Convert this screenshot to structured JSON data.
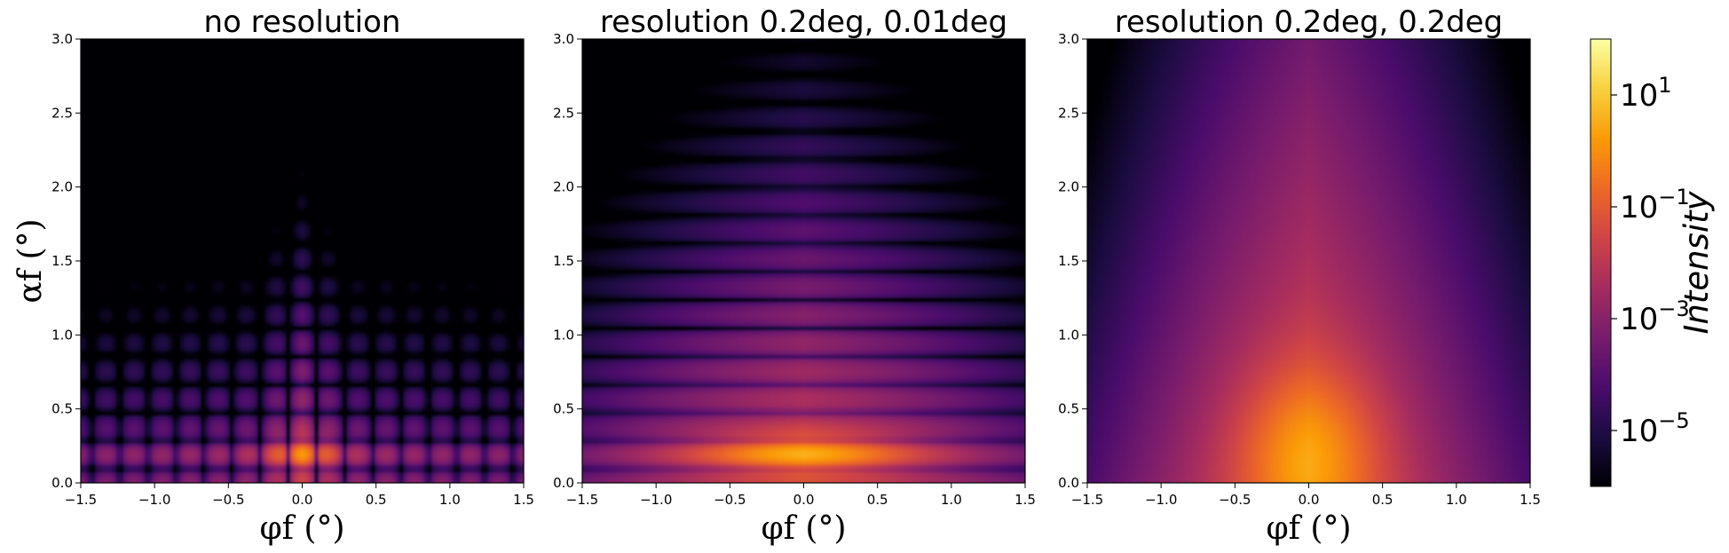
{
  "chart_data": [
    {
      "type": "heatmap",
      "title": "no resolution",
      "xlabel": "φf (°)",
      "ylabel": "αf (°)",
      "xlim": [
        -1.5,
        1.5
      ],
      "ylim": [
        0.0,
        3.0
      ],
      "xticks": [
        "−1.5",
        "−1.0",
        "−0.5",
        "0.0",
        "0.5",
        "1.0",
        "1.5"
      ],
      "yticks": [
        "0.0",
        "0.5",
        "1.0",
        "1.5",
        "2.0",
        "2.5",
        "3.0"
      ],
      "grid": false,
      "pattern": "lattice of intensity maxima (peak spacing ~0.19 deg in both directions); brightest central column at φf = 0; maximum intensity ~10^1 near αf ≈ 0.2"
    },
    {
      "type": "heatmap",
      "title": "resolution 0.2deg, 0.01deg",
      "xlabel": "φf (°)",
      "ylabel": "",
      "xlim": [
        -1.5,
        1.5
      ],
      "ylim": [
        0.0,
        3.0
      ],
      "xticks": [
        "−1.5",
        "−1.0",
        "−0.5",
        "0.0",
        "0.5",
        "1.0",
        "1.5"
      ],
      "yticks": [
        "0.0",
        "0.5",
        "1.0",
        "1.5",
        "2.0",
        "2.5",
        "3.0"
      ],
      "grid": false,
      "pattern": "horizontal fringes in αf, smeared along φf; brightest band near αf ≈ 0.2"
    },
    {
      "type": "heatmap",
      "title": "resolution 0.2deg, 0.2deg",
      "xlabel": "φf (°)",
      "ylabel": "",
      "xlim": [
        -1.5,
        1.5
      ],
      "ylim": [
        0.0,
        3.0
      ],
      "xticks": [
        "−1.5",
        "−1.0",
        "−0.5",
        "0.0",
        "0.5",
        "1.0",
        "1.5"
      ],
      "yticks": [
        "0.0",
        "0.5",
        "1.0",
        "1.5",
        "2.0",
        "2.5",
        "3.0"
      ],
      "grid": false,
      "pattern": "smooth distribution, fully smeared; single bright spot at φf = 0, αf ≈ 0.2"
    }
  ],
  "colorbar": {
    "label": "Intensity",
    "scale": "log",
    "colormap": "inferno",
    "range": [
      1e-06,
      100.0
    ],
    "tick_values": [
      1e-05,
      0.001,
      0.1,
      10.0
    ],
    "ticks": [
      {
        "base": "10",
        "exp": "−5"
      },
      {
        "base": "10",
        "exp": "−3"
      },
      {
        "base": "10",
        "exp": "−1"
      },
      {
        "base": "10",
        "exp": "1"
      }
    ]
  },
  "colors": {
    "inferno": [
      "#000004",
      "#1b0c41",
      "#4a0c6b",
      "#781c6d",
      "#a52c60",
      "#cf4446",
      "#ed6925",
      "#fb9b06",
      "#f7d13d",
      "#fcffa4"
    ]
  }
}
